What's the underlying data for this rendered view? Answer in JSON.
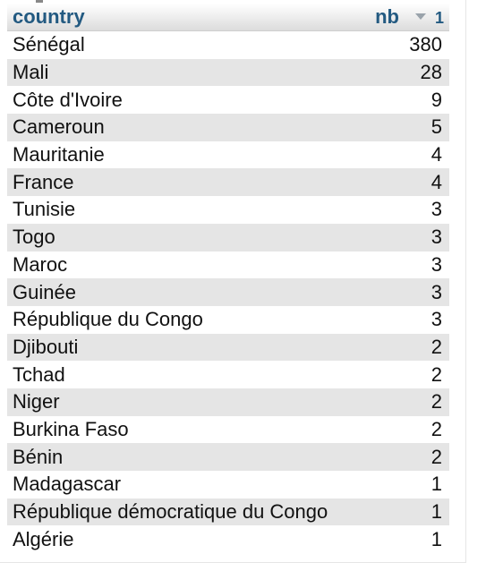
{
  "table": {
    "columns": {
      "country": "country",
      "nb": "nb",
      "sort_index": "1",
      "sort_icon": "sort-desc-icon"
    },
    "rows": [
      {
        "country": "Sénégal",
        "nb": "380"
      },
      {
        "country": "Mali",
        "nb": "28"
      },
      {
        "country": "Côte d'Ivoire",
        "nb": "9"
      },
      {
        "country": "Cameroun",
        "nb": "5"
      },
      {
        "country": "Mauritanie",
        "nb": "4"
      },
      {
        "country": "France",
        "nb": "4"
      },
      {
        "country": "Tunisie",
        "nb": "3"
      },
      {
        "country": "Togo",
        "nb": "3"
      },
      {
        "country": "Maroc",
        "nb": "3"
      },
      {
        "country": "Guinée",
        "nb": "3"
      },
      {
        "country": "République du Congo",
        "nb": "3"
      },
      {
        "country": "Djibouti",
        "nb": "2"
      },
      {
        "country": "Tchad",
        "nb": "2"
      },
      {
        "country": "Niger",
        "nb": "2"
      },
      {
        "country": "Burkina Faso",
        "nb": "2"
      },
      {
        "country": "Bénin",
        "nb": "2"
      },
      {
        "country": "Madagascar",
        "nb": "1"
      },
      {
        "country": "République démocratique du Congo",
        "nb": "1"
      },
      {
        "country": "Algérie",
        "nb": "1"
      }
    ]
  },
  "colors": {
    "header_text": "#235a81",
    "row_stripe": "#e5e5e5"
  }
}
